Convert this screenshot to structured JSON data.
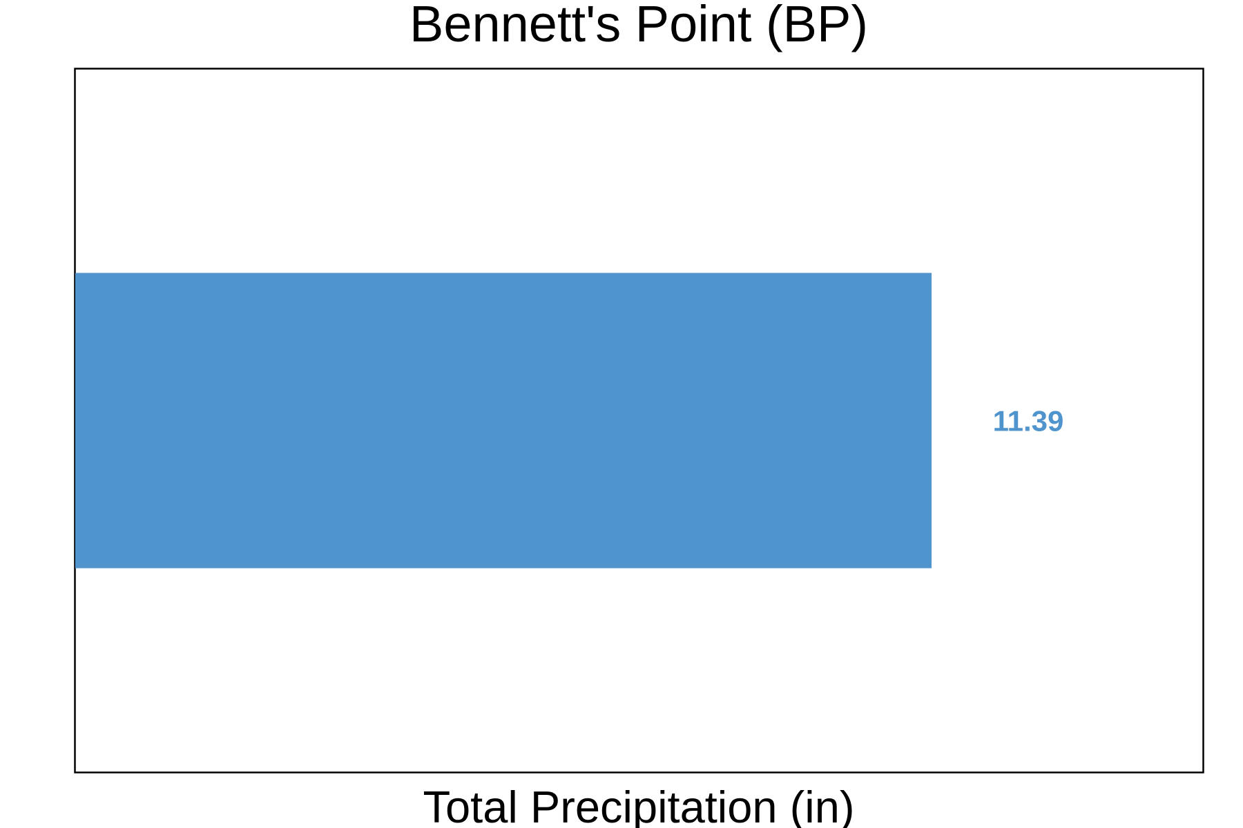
{
  "chart_data": {
    "type": "bar",
    "orientation": "horizontal",
    "title": "Bennett's Point (BP)",
    "xlabel": "Total Precipitation (in)",
    "ylabel": "",
    "categories": [
      "BP"
    ],
    "values": [
      11.39
    ],
    "value_labels": [
      "11.39"
    ],
    "xlim": [
      0,
      15
    ],
    "grid": false,
    "legend": "none",
    "bar_color": "#5094CE",
    "label_color": "#5094CE",
    "frame_color": "#000000"
  }
}
